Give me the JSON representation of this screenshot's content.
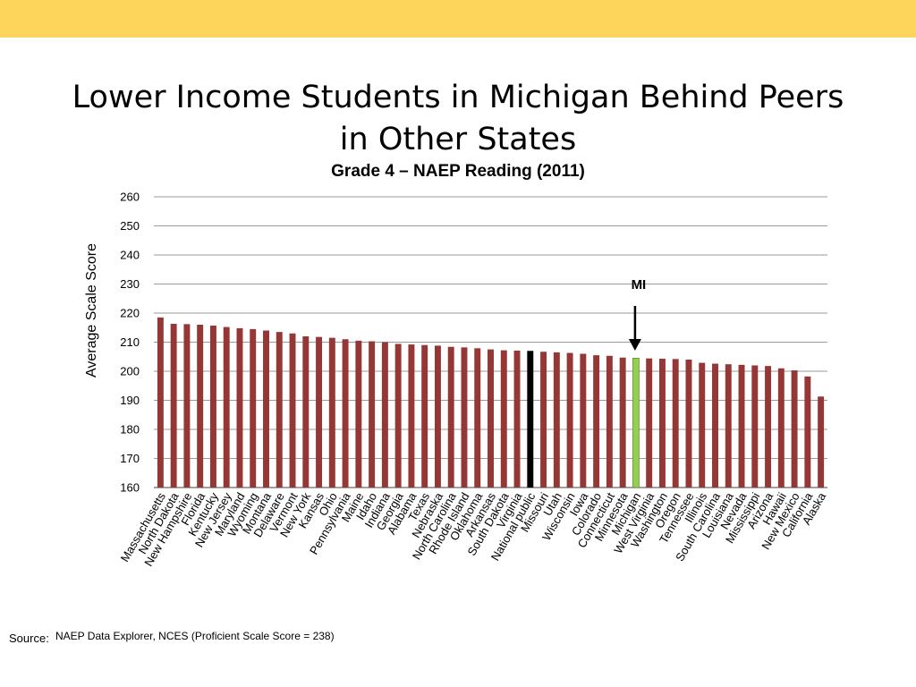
{
  "slide": {
    "title": "Lower Income Students in Michigan Behind Peers in Other States",
    "source_label": "Source:",
    "source_text": "NAEP Data Explorer, NCES (Proficient Scale Score = 238)",
    "top_band_color": "#FDD55B"
  },
  "chart_data": {
    "type": "bar",
    "title": "Grade 4 – NAEP Reading (2011)",
    "xlabel": "",
    "ylabel": "Average Scale Score",
    "ylim": [
      160,
      260
    ],
    "yticks": [
      160,
      170,
      180,
      190,
      200,
      210,
      220,
      230,
      240,
      250,
      260
    ],
    "grid": true,
    "annotation": {
      "text": "MI",
      "target": "Michigan",
      "style": "down-arrow"
    },
    "colors": {
      "default": "#953735",
      "national": "#000000",
      "highlight": "#92D050"
    },
    "categories": [
      "Massachusetts",
      "North Dakota",
      "New Hampshire",
      "Florida",
      "Kentucky",
      "New Jersey",
      "Maryland",
      "Wyoming",
      "Montana",
      "Delaware",
      "Vermont",
      "New York",
      "Kansas",
      "Ohio",
      "Pennsylvania",
      "Maine",
      "Idaho",
      "Indiana",
      "Georgia",
      "Alabama",
      "Texas",
      "Nebraska",
      "North Carolina",
      "Rhode Island",
      "Oklahoma",
      "Arkansas",
      "South Dakota",
      "Virginia",
      "National public",
      "Missouri",
      "Utah",
      "Wisconsin",
      "Iowa",
      "Colorado",
      "Connecticut",
      "Minnesota",
      "Michigan",
      "West Virginia",
      "Washington",
      "Oregon",
      "Tennessee",
      "Illinois",
      "South Carolina",
      "Louisiana",
      "Nevada",
      "Mississippi",
      "Arizona",
      "Hawaii",
      "New Mexico",
      "California",
      "Alaska"
    ],
    "values": [
      218.5,
      216.3,
      216.2,
      216,
      215.7,
      215.2,
      214.8,
      214.5,
      214,
      213.5,
      213,
      212,
      211.8,
      211.5,
      211,
      210.5,
      210.3,
      210,
      209.4,
      209.2,
      209,
      208.8,
      208.4,
      208.2,
      207.9,
      207.5,
      207.2,
      207.1,
      207,
      206.7,
      206.5,
      206.3,
      206,
      205.5,
      205.3,
      204.7,
      204.5,
      204.4,
      204.3,
      204.2,
      204,
      202.9,
      202.6,
      202.4,
      202.2,
      202,
      201.8,
      201,
      200.3,
      198.2,
      191.3
    ]
  }
}
